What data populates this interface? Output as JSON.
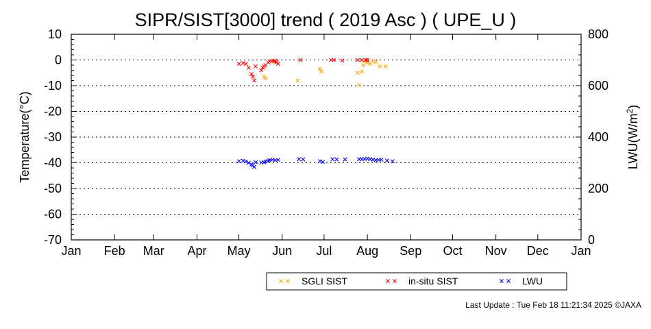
{
  "chart_data": {
    "type": "scatter",
    "title": "SIPR/SIST[3000] trend ( 2019 Asc ) ( UPE_U )",
    "ylabel": "Temperature(°C)",
    "y2label_main": "LWU(W/m",
    "y2label_sup": "2",
    "y2label_end": ")",
    "ylim": [
      -70,
      10
    ],
    "y2lim": [
      0,
      800
    ],
    "yticks": [
      "10",
      "0",
      "-10",
      "-20",
      "-30",
      "-40",
      "-50",
      "-60",
      "-70"
    ],
    "y2ticks": [
      "800",
      "600",
      "400",
      "200",
      "0"
    ],
    "months": [
      "Jan",
      "Feb",
      "Mar",
      "Apr",
      "May",
      "Jun",
      "Jul",
      "Aug",
      "Sep",
      "Oct",
      "Nov",
      "Dec",
      "Jan"
    ],
    "grid": true,
    "legend_position": "bottom",
    "series": [
      {
        "name": "SGLI SIST",
        "color": "#ffa500",
        "axis": "left",
        "marker": "x",
        "points": [
          [
            "2019-05-19",
            -6.5
          ],
          [
            "2019-05-20",
            -7.2
          ],
          [
            "2019-05-27",
            -1.0
          ],
          [
            "2019-06-12",
            -8.0
          ],
          [
            "2019-06-28",
            -3.5
          ],
          [
            "2019-06-29",
            -4.5
          ],
          [
            "2019-07-25",
            -5.0
          ],
          [
            "2019-07-26",
            -9.8
          ],
          [
            "2019-07-28",
            -4.5
          ],
          [
            "2019-07-29",
            -2.0
          ],
          [
            "2019-07-30",
            -0.5
          ],
          [
            "2019-08-01",
            -1.0
          ],
          [
            "2019-08-03",
            -1.5
          ],
          [
            "2019-08-05",
            -0.5
          ],
          [
            "2019-08-07",
            -0.8
          ],
          [
            "2019-08-10",
            -2.5
          ],
          [
            "2019-08-14",
            -2.5
          ]
        ]
      },
      {
        "name": "in-situ SIST",
        "color": "#ff0000",
        "axis": "left",
        "marker": "x",
        "points": [
          [
            "2019-05-01",
            -1.5
          ],
          [
            "2019-05-04",
            -1.2
          ],
          [
            "2019-05-06",
            -1.5
          ],
          [
            "2019-05-08",
            -3.0
          ],
          [
            "2019-05-10",
            -5.5
          ],
          [
            "2019-05-11",
            -6.5
          ],
          [
            "2019-05-12",
            -8.0
          ],
          [
            "2019-05-13",
            -2.5
          ],
          [
            "2019-05-17",
            -4.0
          ],
          [
            "2019-05-18",
            -3.0
          ],
          [
            "2019-05-19",
            -2.5
          ],
          [
            "2019-05-20",
            -2.0
          ],
          [
            "2019-05-22",
            -1.0
          ],
          [
            "2019-05-23",
            -0.5
          ],
          [
            "2019-05-25",
            -0.3
          ],
          [
            "2019-05-26",
            -0.5
          ],
          [
            "2019-05-27",
            -0.3
          ],
          [
            "2019-05-28",
            -0.8
          ],
          [
            "2019-05-29",
            -1.5
          ],
          [
            "2019-06-14",
            0.0
          ],
          [
            "2019-07-06",
            0.0
          ],
          [
            "2019-07-08",
            0.0
          ],
          [
            "2019-07-14",
            -0.2
          ],
          [
            "2019-07-25",
            0.0
          ],
          [
            "2019-07-28",
            0.0
          ],
          [
            "2019-07-31",
            0.0
          ],
          [
            "2019-08-01",
            0.0
          ]
        ]
      },
      {
        "name": "LWU",
        "color": "#0000ff",
        "axis": "right",
        "marker": "x",
        "points": [
          [
            "2019-05-01",
            306
          ],
          [
            "2019-05-04",
            308
          ],
          [
            "2019-05-06",
            305
          ],
          [
            "2019-05-08",
            300
          ],
          [
            "2019-05-10",
            293
          ],
          [
            "2019-05-11",
            290
          ],
          [
            "2019-05-12",
            284
          ],
          [
            "2019-05-13",
            302
          ],
          [
            "2019-05-17",
            301
          ],
          [
            "2019-05-19",
            302
          ],
          [
            "2019-05-20",
            305
          ],
          [
            "2019-05-22",
            308
          ],
          [
            "2019-05-23",
            310
          ],
          [
            "2019-05-25",
            312
          ],
          [
            "2019-05-27",
            310
          ],
          [
            "2019-05-29",
            311
          ],
          [
            "2019-06-13",
            314
          ],
          [
            "2019-06-16",
            313
          ],
          [
            "2019-06-28",
            306
          ],
          [
            "2019-06-30",
            303
          ],
          [
            "2019-07-07",
            314
          ],
          [
            "2019-07-10",
            313
          ],
          [
            "2019-07-16",
            313
          ],
          [
            "2019-07-26",
            314
          ],
          [
            "2019-07-28",
            314
          ],
          [
            "2019-07-30",
            315
          ],
          [
            "2019-08-01",
            316
          ],
          [
            "2019-08-03",
            314
          ],
          [
            "2019-08-05",
            312
          ],
          [
            "2019-08-07",
            310
          ],
          [
            "2019-08-09",
            311
          ],
          [
            "2019-08-11",
            312
          ],
          [
            "2019-08-15",
            309
          ],
          [
            "2019-08-19",
            306
          ]
        ]
      }
    ]
  },
  "footer": {
    "text": "Last Update : Tue Feb 18 11:21:34 2025  ©JAXA"
  }
}
